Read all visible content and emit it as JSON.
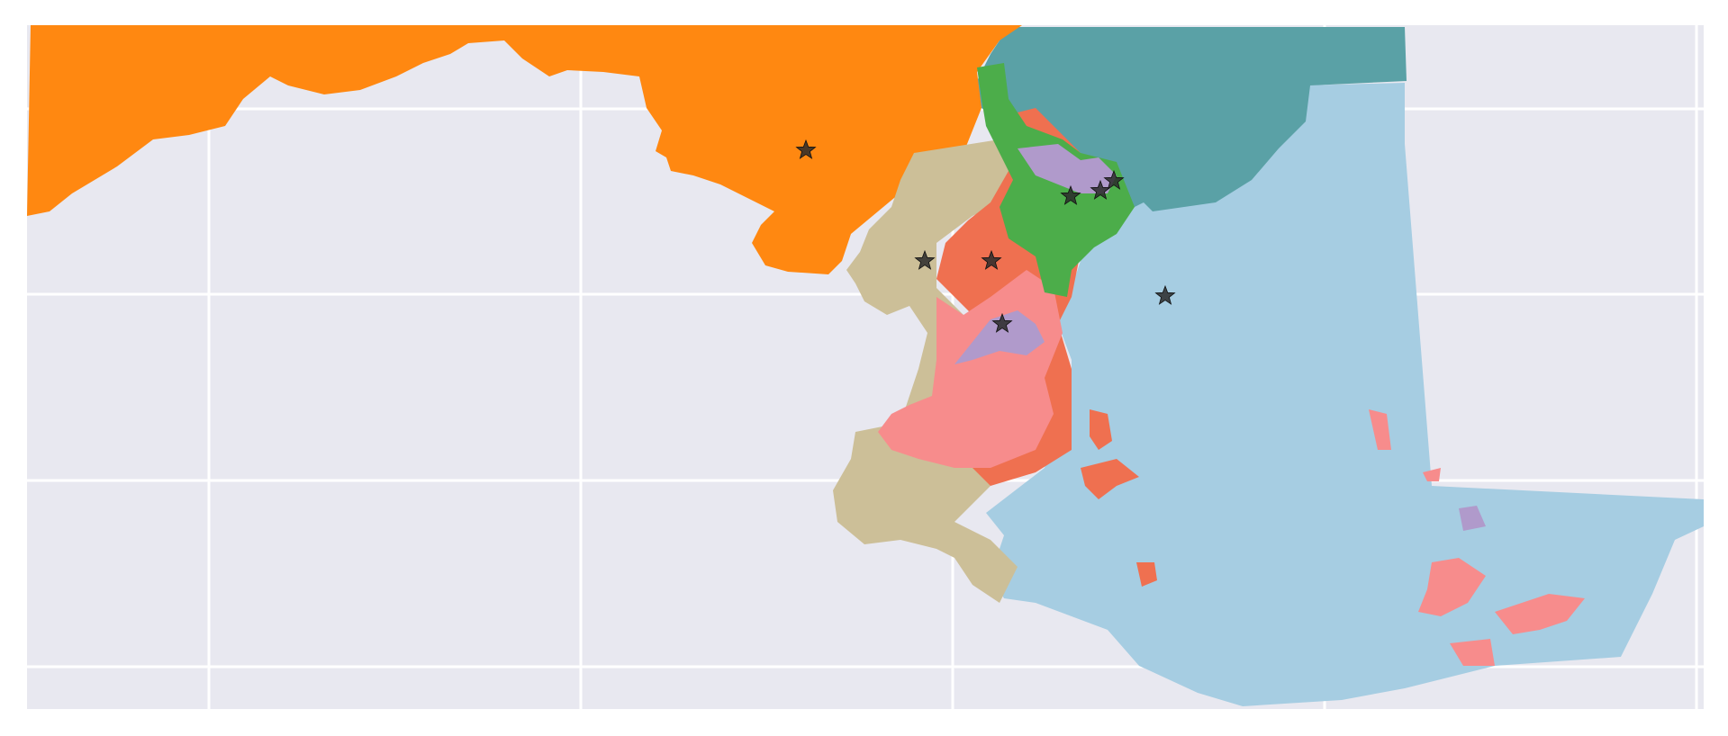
{
  "map": {
    "background": "#e8e8f0",
    "gridline_color": "#ffffff",
    "district_colors": {
      "west": "#ff8811",
      "north_teal": "#5aa1a6",
      "east_shore": "#a6cde2",
      "south_tan": "#ccbf98",
      "central_orange": "#ef7050",
      "central_pink": "#f78c8c",
      "baltimore_green": "#4cad4a",
      "purple": "#b09acb"
    },
    "marker": {
      "symbol": "star",
      "icon": "star-icon",
      "color": "#2a2a2a",
      "count": 8
    }
  }
}
